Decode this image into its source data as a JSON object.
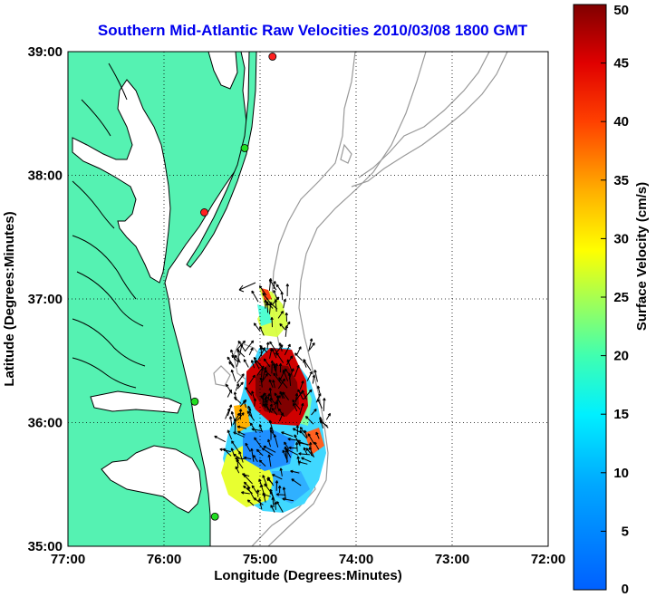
{
  "map": {
    "title": "Southern Mid-Atlantic Raw Velocities 2010/03/08 1800 GMT",
    "xlabel": "Longitude (Degrees:Minutes)",
    "ylabel": "Latitude (Degrees:Minutes)",
    "lon_range": [
      -77,
      -72
    ],
    "lat_range": [
      35,
      39
    ],
    "lon_ticks": [
      {
        "value": -77,
        "label": "77:00"
      },
      {
        "value": -76,
        "label": "76:00"
      },
      {
        "value": -75,
        "label": "75:00"
      },
      {
        "value": -74,
        "label": "74:00"
      },
      {
        "value": -73,
        "label": "73:00"
      },
      {
        "value": -72,
        "label": "72:00"
      }
    ],
    "lat_ticks": [
      {
        "value": 35,
        "label": "35:00"
      },
      {
        "value": 36,
        "label": "36:00"
      },
      {
        "value": 37,
        "label": "37:00"
      },
      {
        "value": 38,
        "label": "38:00"
      },
      {
        "value": 39,
        "label": "39:00"
      }
    ],
    "colors": {
      "land": "#55f2b2",
      "coast": "#000000",
      "isobath": "#999999",
      "grid": "#000000",
      "title": "#0000ee"
    },
    "stations": [
      {
        "lon": -74.87,
        "lat": 38.96,
        "color": "#ff2020"
      },
      {
        "lon": -75.16,
        "lat": 38.22,
        "color": "#22dd22"
      },
      {
        "lon": -75.58,
        "lat": 37.7,
        "color": "#ff2020"
      },
      {
        "lon": -75.68,
        "lat": 36.17,
        "color": "#22dd22"
      },
      {
        "lon": -75.47,
        "lat": 35.24,
        "color": "#22dd22"
      }
    ],
    "colorbar": {
      "label": "Surface Velocity (cm/s)",
      "min": 0,
      "max": 50,
      "ticks": [
        {
          "value": 0,
          "label": "0"
        },
        {
          "value": 5,
          "label": "5"
        },
        {
          "value": 10,
          "label": "10"
        },
        {
          "value": 15,
          "label": "15"
        },
        {
          "value": 20,
          "label": "20"
        },
        {
          "value": 25,
          "label": "25"
        },
        {
          "value": 30,
          "label": "30"
        },
        {
          "value": 35,
          "label": "35"
        },
        {
          "value": 40,
          "label": "40"
        },
        {
          "value": 45,
          "label": "45"
        },
        {
          "value": 50,
          "label": "50"
        }
      ]
    }
  }
}
